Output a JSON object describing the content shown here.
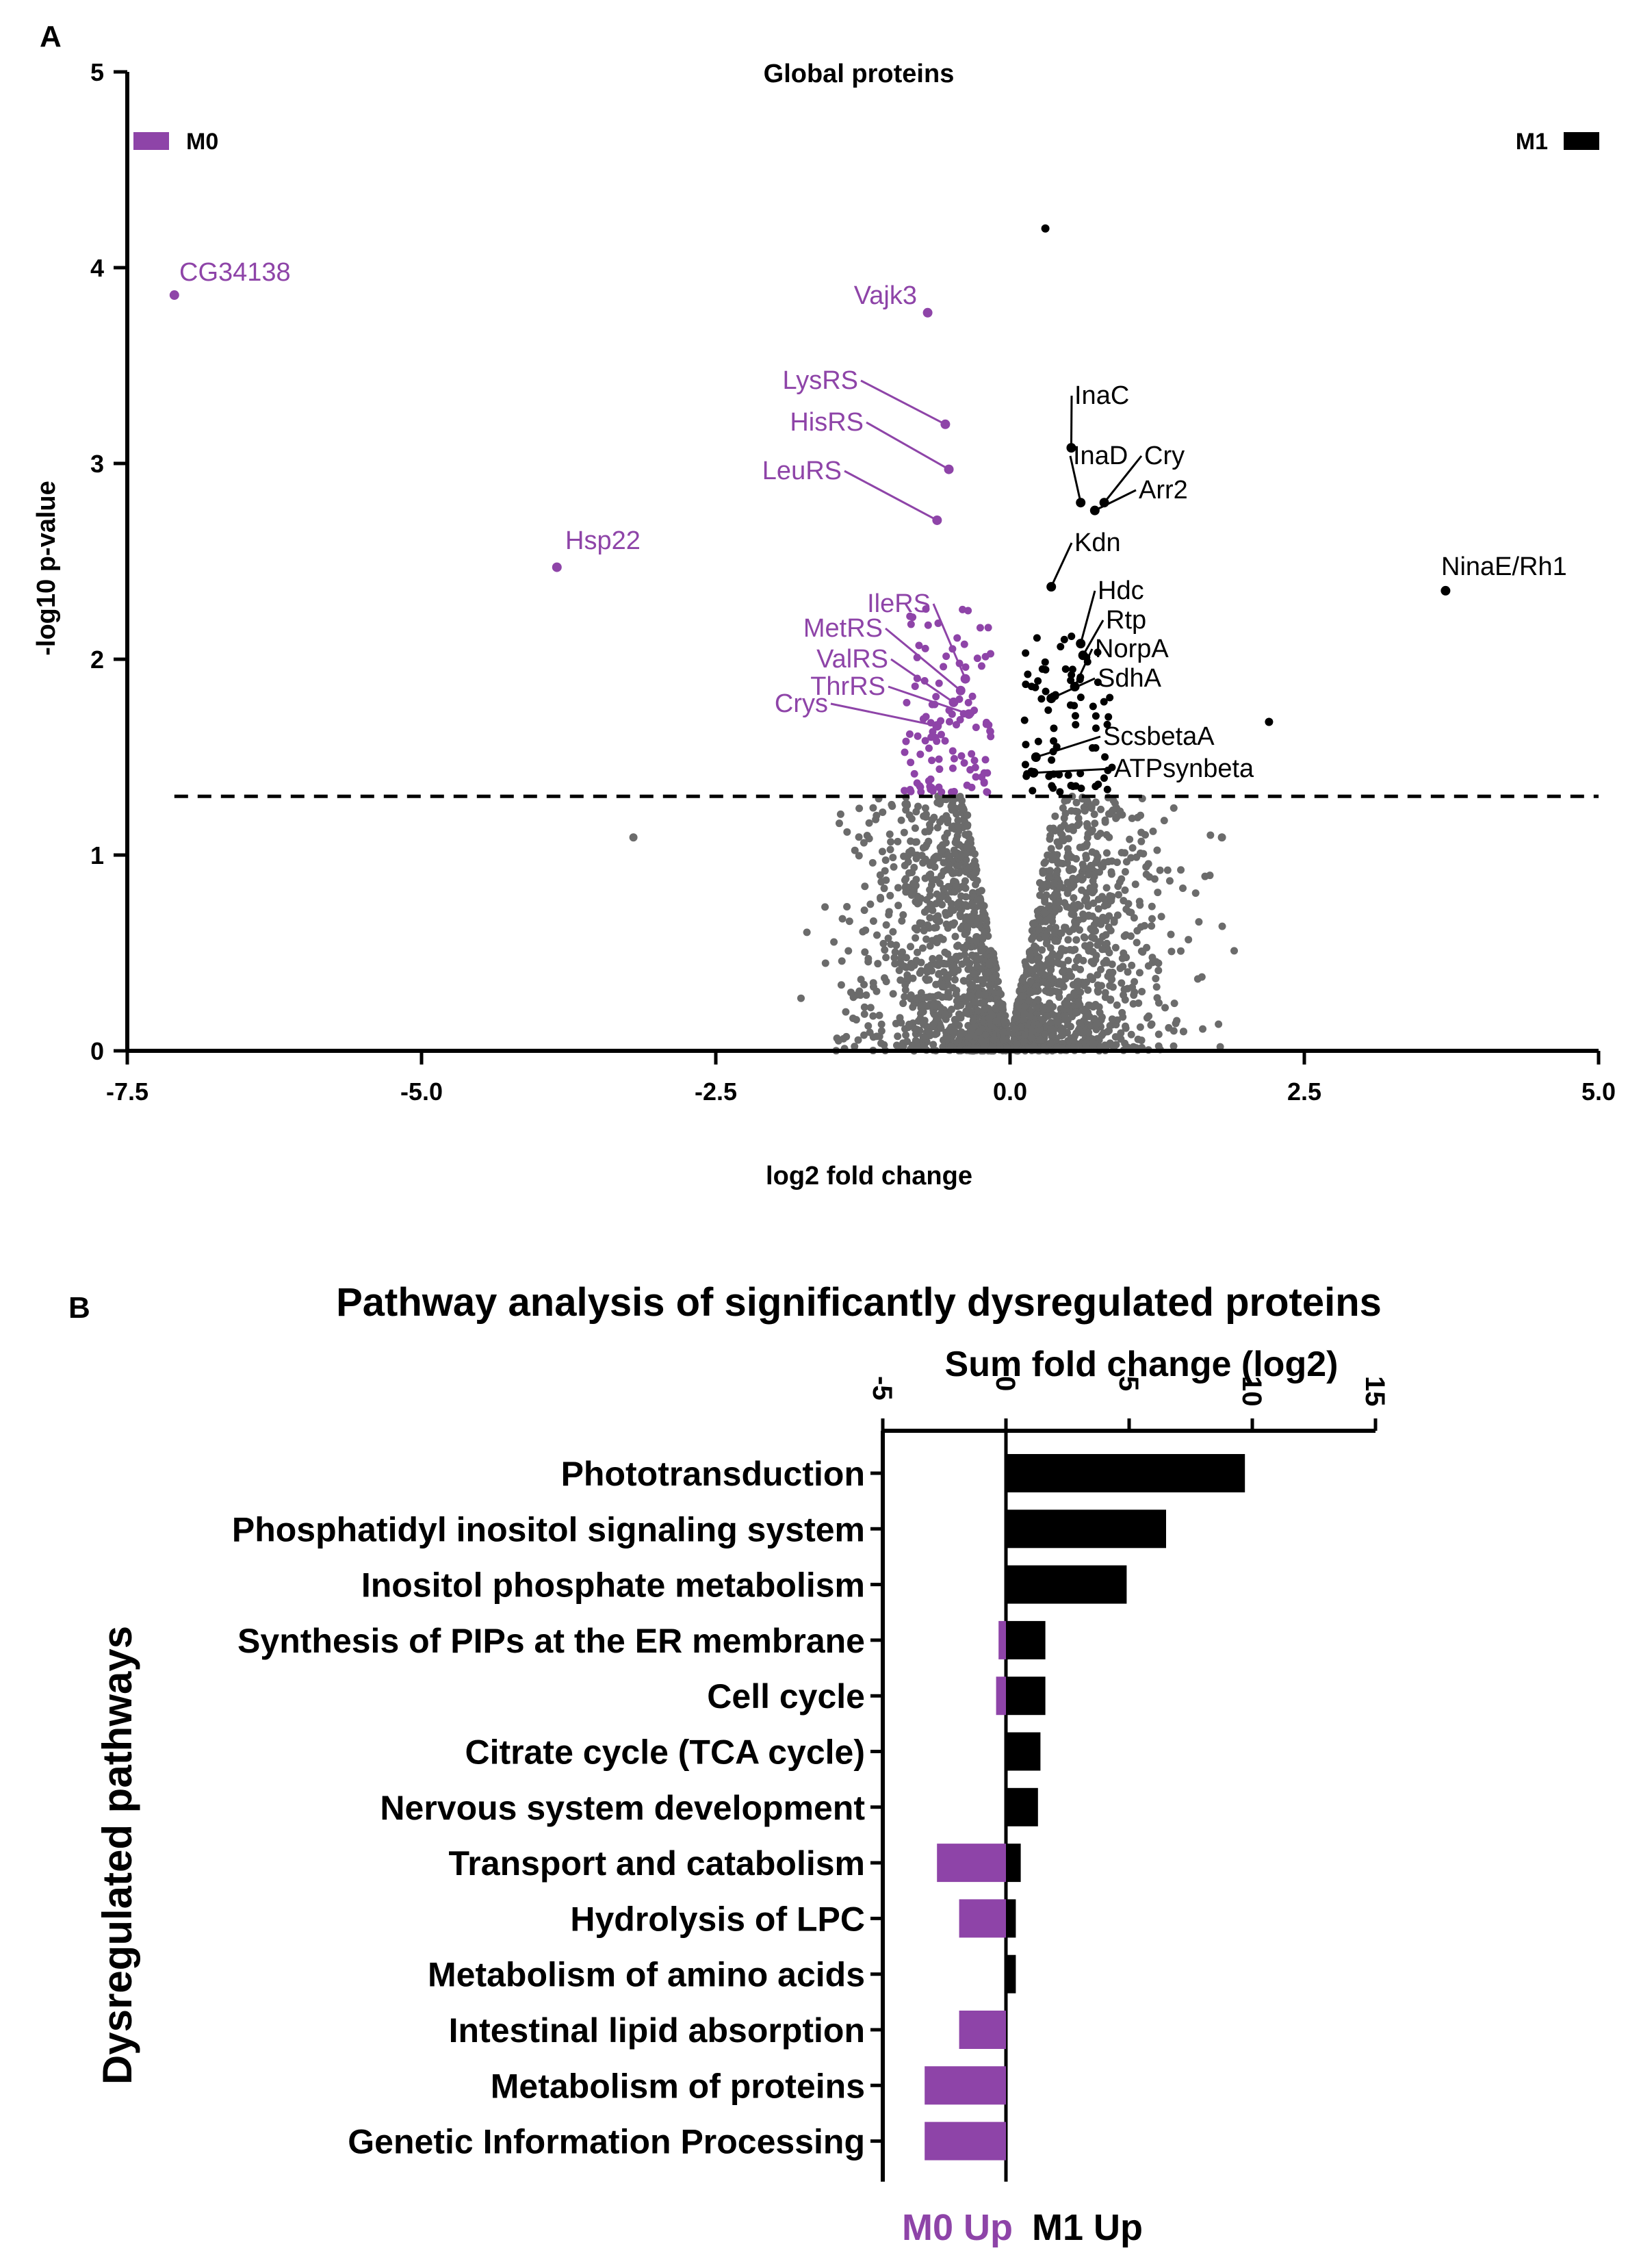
{
  "colors": {
    "m0": "#8e44a8",
    "m1": "#000000",
    "ns": "#6b6b6b",
    "axis": "#000000"
  },
  "chart_data": [
    {
      "panel_label": "A",
      "type": "scatter",
      "title": "Global proteins",
      "xlabel": "log2 fold change",
      "ylabel": "-log10 p-value",
      "xlim": [
        -7.5,
        5.0
      ],
      "ylim": [
        0,
        5
      ],
      "x_ticks": [
        "-7.5",
        "-5.0",
        "-2.5",
        "0.0",
        "2.5",
        "5.0"
      ],
      "y_ticks": [
        "0",
        "1",
        "2",
        "3",
        "4",
        "5"
      ],
      "threshold_y": 1.3,
      "legend": [
        {
          "label": "M0",
          "color": "#8e44a8",
          "position": "top-left"
        },
        {
          "label": "M1",
          "color": "#000000",
          "position": "top-right"
        }
      ],
      "labeled_points": [
        {
          "name": "CG34138",
          "x": -7.1,
          "y": 3.86,
          "group": "M0"
        },
        {
          "name": "Hsp22",
          "x": -3.85,
          "y": 2.47,
          "group": "M0"
        },
        {
          "name": "Vajk3",
          "x": -0.7,
          "y": 3.77,
          "group": "M0"
        },
        {
          "name": "LysRS",
          "x": -0.55,
          "y": 3.2,
          "group": "M0"
        },
        {
          "name": "HisRS",
          "x": -0.52,
          "y": 2.97,
          "group": "M0"
        },
        {
          "name": "LeuRS",
          "x": -0.62,
          "y": 2.71,
          "group": "M0"
        },
        {
          "name": "IleRS",
          "x": -0.38,
          "y": 1.9,
          "group": "M0"
        },
        {
          "name": "MetRS",
          "x": -0.42,
          "y": 1.84,
          "group": "M0"
        },
        {
          "name": "ValRS",
          "x": -0.48,
          "y": 1.78,
          "group": "M0"
        },
        {
          "name": "ThrRS",
          "x": -0.35,
          "y": 1.72,
          "group": "M0"
        },
        {
          "name": "Crys",
          "x": -0.62,
          "y": 1.66,
          "group": "M0"
        },
        {
          "name": "InaC",
          "x": 0.52,
          "y": 3.08,
          "group": "M1"
        },
        {
          "name": "InaD",
          "x": 0.6,
          "y": 2.8,
          "group": "M1"
        },
        {
          "name": "Cry",
          "x": 0.8,
          "y": 2.8,
          "group": "M1"
        },
        {
          "name": "Arr2",
          "x": 0.72,
          "y": 2.76,
          "group": "M1"
        },
        {
          "name": "Kdn",
          "x": 0.35,
          "y": 2.37,
          "group": "M1"
        },
        {
          "name": "Hdc",
          "x": 0.6,
          "y": 2.08,
          "group": "M1"
        },
        {
          "name": "Rtp",
          "x": 0.62,
          "y": 2.02,
          "group": "M1"
        },
        {
          "name": "NorpA",
          "x": 0.55,
          "y": 1.86,
          "group": "M1"
        },
        {
          "name": "SdhA",
          "x": 0.35,
          "y": 1.8,
          "group": "M1"
        },
        {
          "name": "ScsbetaA",
          "x": 0.22,
          "y": 1.5,
          "group": "M1"
        },
        {
          "name": "ATPsynbeta",
          "x": 0.2,
          "y": 1.42,
          "group": "M1"
        },
        {
          "name": "NinaE/Rh1",
          "x": 3.7,
          "y": 2.35,
          "group": "M1"
        }
      ],
      "other_points": [
        {
          "x": 0.3,
          "y": 4.2,
          "group": "M1"
        },
        {
          "x": 2.2,
          "y": 1.68,
          "group": "M1"
        },
        {
          "x": -3.2,
          "y": 1.09,
          "group": "ns"
        },
        {
          "x": 1.8,
          "y": 1.09,
          "group": "ns"
        }
      ]
    },
    {
      "panel_label": "B",
      "type": "bar",
      "orientation": "horizontal",
      "title": "Pathway analysis of significantly dysregulated proteins",
      "xlabel": "Sum fold change (log2)",
      "ylabel": "Dysregulated pathways",
      "xlim": [
        -5,
        15
      ],
      "x_ticks": [
        "-5",
        "0",
        "5",
        "10",
        "15"
      ],
      "bottom_labels": {
        "left": "M0 Up",
        "right": "M1 Up"
      },
      "categories": [
        "Phototransduction",
        "Phosphatidyl inositol signaling system",
        "Inositol phosphate metabolism",
        "Synthesis of PIPs at the ER membrane",
        "Cell cycle",
        "Citrate cycle (TCA cycle)",
        "Nervous system development",
        "Transport and catabolism",
        "Hydrolysis of LPC",
        "Metabolism of amino acids",
        "Intestinal lipid absorption",
        "Metabolism of proteins",
        "Genetic Information Processing"
      ],
      "series": [
        {
          "name": "M1 Up",
          "values": [
            9.7,
            6.5,
            4.9,
            1.6,
            1.6,
            1.4,
            1.3,
            0.6,
            0.4,
            0.4,
            0,
            0,
            0
          ]
        },
        {
          "name": "M0 Up",
          "values": [
            0,
            0,
            0,
            -0.3,
            -0.4,
            0,
            0,
            -2.8,
            -1.9,
            0,
            -1.9,
            -3.3,
            -3.3
          ]
        }
      ]
    }
  ]
}
